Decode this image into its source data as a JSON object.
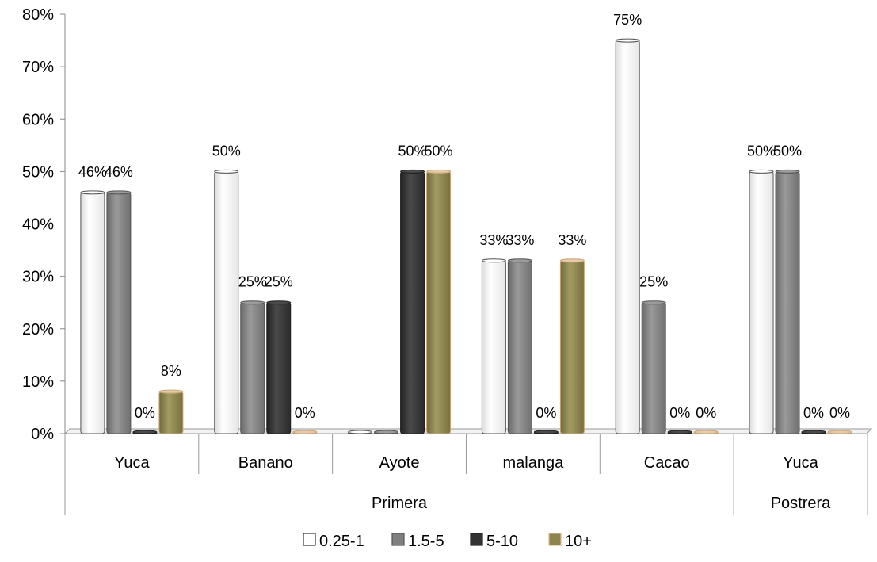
{
  "chart_data": {
    "type": "bar",
    "title": "",
    "xlabel": "",
    "ylabel": "",
    "ylim": [
      0,
      80
    ],
    "yticks": [
      "0%",
      "10%",
      "20%",
      "30%",
      "40%",
      "50%",
      "60%",
      "70%",
      "80%"
    ],
    "y_tick_values": [
      0,
      10,
      20,
      30,
      40,
      50,
      60,
      70,
      80
    ],
    "groups": [
      {
        "label": "Primera",
        "categories": [
          "Yuca",
          "Banano",
          "Ayote",
          "malanga",
          "Cacao"
        ]
      },
      {
        "label": "Postrera",
        "categories": [
          "Yuca"
        ]
      }
    ],
    "categories": [
      "Yuca",
      "Banano",
      "Ayote",
      "malanga",
      "Cacao",
      "Yuca"
    ],
    "series": [
      {
        "name": "0.25-1",
        "color": "#ffffff",
        "values": [
          46,
          50,
          0,
          33,
          75,
          50
        ],
        "labels": [
          "46%",
          "50%",
          "0%",
          "33%",
          "75%",
          "50%"
        ]
      },
      {
        "name": "1.5-5",
        "color": "#808080",
        "values": [
          46,
          25,
          0,
          33,
          25,
          50
        ],
        "labels": [
          "46%",
          "25%",
          "0%",
          "33%",
          "25%",
          "50%"
        ]
      },
      {
        "name": "5-10",
        "color": "#333333",
        "values": [
          0,
          25,
          50,
          0,
          0,
          0
        ],
        "labels": [
          "0%",
          "25%",
          "50%",
          "0%",
          "0%",
          "0%"
        ]
      },
      {
        "name": "10+",
        "color": "#8c8550",
        "values": [
          8,
          0,
          50,
          33,
          0,
          0
        ],
        "labels": [
          "8%",
          "0%",
          "50%",
          "33%",
          "0%",
          "0%"
        ]
      }
    ],
    "data_labels_shown": [
      [
        true,
        true,
        false,
        true,
        true,
        true
      ],
      [
        true,
        true,
        false,
        true,
        true,
        true
      ],
      [
        true,
        true,
        true,
        true,
        true,
        true
      ],
      [
        true,
        true,
        true,
        true,
        true,
        true
      ]
    ],
    "legend_position": "bottom",
    "grid": false
  }
}
